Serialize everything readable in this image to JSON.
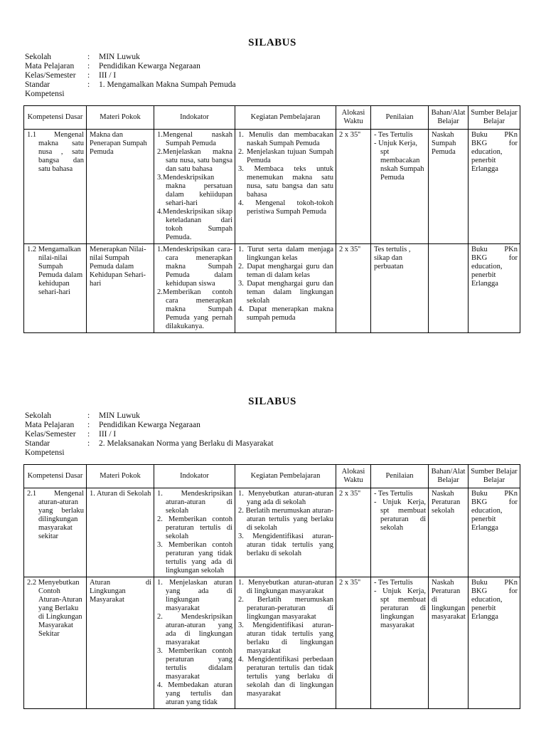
{
  "sections": [
    {
      "title": "SILABUS",
      "meta": [
        {
          "label": "Sekolah",
          "sep": ":",
          "value": "MIN Luwuk"
        },
        {
          "label": "Mata Pelajaran",
          "sep": ":",
          "value": "Pendidikan Kewarga Negaraan"
        },
        {
          "label": "Kelas/Semester",
          "sep": ":",
          "value": "III / I"
        },
        {
          "label": "Standar Kompetensi",
          "sep": ":",
          "value": "1. Mengamalkan Makna Sumpah Pemuda"
        }
      ],
      "table": {
        "headers": [
          "Kompetensi Dasar",
          "Materi Pokok",
          "Indokator",
          "Kegiatan Pembelajaran",
          "Alokasi Waktu",
          "Penilaian",
          "Bahan/Alat Belajar",
          "Sumber Belajar Belajar"
        ],
        "rows": [
          {
            "kompetensi_dasar": "1.1 Mengenal makna satu nusa , satu bangsa dan satu bahasa",
            "materi_pokok": "Makna dan Penerapan Sumpah Pemuda",
            "indikator": [
              "1.Mengenal naskah Sumpah Pemuda",
              "2.Menjelaskan makna satu nusa, satu bangsa dan satu bahasa",
              "3.Mendeskripsikan makna persatuan dalam kehiidupan sehari-hari",
              "4.Mendeskripsikan sikap keteladanan dari tokoh Sumpah Pemuda."
            ],
            "kegiatan": [
              "1. Menulis dan membacakan naskah Sumpah Pemuda",
              "2. Menjelaskan tujuan Sumpah Pemuda",
              "3. Membaca teks untuk menemukan makna satu nusa, satu bangsa dan satu bahasa",
              "4. Mengenal tokoh-tokoh peristiwa Sumpah Pemuda"
            ],
            "alokasi_waktu": "2 x 35''",
            "penilaian": [
              "- Tes Tertulis",
              "- Unjuk Kerja, spt membacakan nskah Sumpah Pemuda"
            ],
            "bahan_alat": "Naskah Sumpah Pemuda",
            "sumber_belajar": "Buku PKn BKG for education, penerbit Erlangga"
          },
          {
            "kompetensi_dasar": "1.2 Mengamalkan nilai-nilai Sumpah Pemuda dalam kehidupan sehari-hari",
            "materi_pokok": "Menerapkan Nilai-nilai Sumpah Pemuda dalam Kehidupan Sehari-hari",
            "indikator": [
              "1.Mendeskripsikan cara-cara menerapkan makna Sumpah Pemuda dalam kehidupan siswa",
              "2.Memberikan contoh cara menerapkan makna Sumpah Pemuda yang pernah dilakukanya."
            ],
            "kegiatan": [
              "1. Turut serta dalam menjaga lingkungan kelas",
              "2. Dapat menghargai guru dan teman di dalam kelas",
              "3. Dapat menghargai guru dan teman dalam lingkungan sekolah",
              "4. Dapat menerapkan makna sumpah pemuda"
            ],
            "alokasi_waktu": "2 x 35''",
            "penilaian": [
              "Tes tertulis , sikap dan perbuatan"
            ],
            "bahan_alat": "",
            "sumber_belajar": "Buku PKn BKG for education, penerbit Erlangga"
          }
        ]
      }
    },
    {
      "title": "SILABUS",
      "meta": [
        {
          "label": "Sekolah",
          "sep": ":",
          "value": "MIN Luwuk"
        },
        {
          "label": "Mata Pelajaran",
          "sep": ":",
          "value": "Pendidikan Kewarga Negaraan"
        },
        {
          "label": "Kelas/Semester",
          "sep": ":",
          "value": "III / I"
        },
        {
          "label": "Standar Kompetensi",
          "sep": ":",
          "value": "2. Melaksanakan Norma yang Berlaku di Masyarakat"
        }
      ],
      "table": {
        "headers": [
          "Kompetensi Dasar",
          "Materi Pokok",
          "Indokator",
          "Kegiatan Pembelajaran",
          "Alokasi Waktu",
          "Penilaian",
          "Bahan/Alat Belajar",
          "Sumber Belajar Belajar"
        ],
        "rows": [
          {
            "kompetensi_dasar": "2.1 Mengenal aturan-aturan yang berlaku dilingkungan masyarakat sekitar",
            "materi_pokok": "1. Aturan di Sekolah",
            "indikator": [
              "1. Mendeskripsikan aturan-aturan di sekolah",
              "2. Memberikan contoh peraturan tertulis di sekolah",
              "3. Memberikan contoh peraturan yang tidak tertulis yang ada di lingkungan sekolah"
            ],
            "kegiatan": [
              "1. Menyebutkan aturan-aturan yang ada di sekolah",
              "2. Berlatih merumuskan aturan-aturan tertulis yang berlaku di sekolah",
              "3. Mengidentifikasi aturan-aturan tidak tertulis yang berlaku di sekolah"
            ],
            "alokasi_waktu": "2 x 35''",
            "penilaian": [
              "- Tes Tertulis",
              "- Unjuk Kerja, spt membuat peraturan di sekolah"
            ],
            "bahan_alat": "Naskah Peraturan sekolah",
            "sumber_belajar": "Buku PKn BKG for education, penerbit Erlangga"
          },
          {
            "kompetensi_dasar": "2.2 Menyebutkan Contoh Aturan-Aturan yang Berlaku di Lingkungan Masyarakat Sekitar",
            "materi_pokok": "Aturan di Lingkungan Masyarakat",
            "indikator": [
              "1. Menjelaskan aturan yang ada di lingkungan masyarakat",
              "2. Mendeskripsikan aturan-aturan yang ada di lingkungan masyarakat",
              "3. Memberikan contoh peraturan yang tertulis didalam masyarakat",
              "4. Membedakan aturan yang tertulis dan aturan yang tidak"
            ],
            "kegiatan": [
              "1. Menyebutkan aturan-aturan di lingkungan masyarakat",
              "2. Berlatih merumuskan peraturan-peraturan di lingkungan masyarakat",
              "3. Mengidentifikasi aturan-aturan tidak tertulis yang berlaku di lingkungan masyarakat",
              "4. Mengidentifikasi perbedaan peraturan tertulis dan tidak tertulis yang berlaku di sekolah dan di lingkungan masyarakat"
            ],
            "alokasi_waktu": "2 x 35''",
            "penilaian": [
              "- Tes Tertulis",
              "- Unjuk Kerja, spt membuat peraturan di lingkungan masyarakat"
            ],
            "bahan_alat": "Naskah Peraturan di lingkungan masyarakat",
            "sumber_belajar": "Buku PKn BKG for education, penerbit Erlangga"
          }
        ]
      }
    }
  ]
}
